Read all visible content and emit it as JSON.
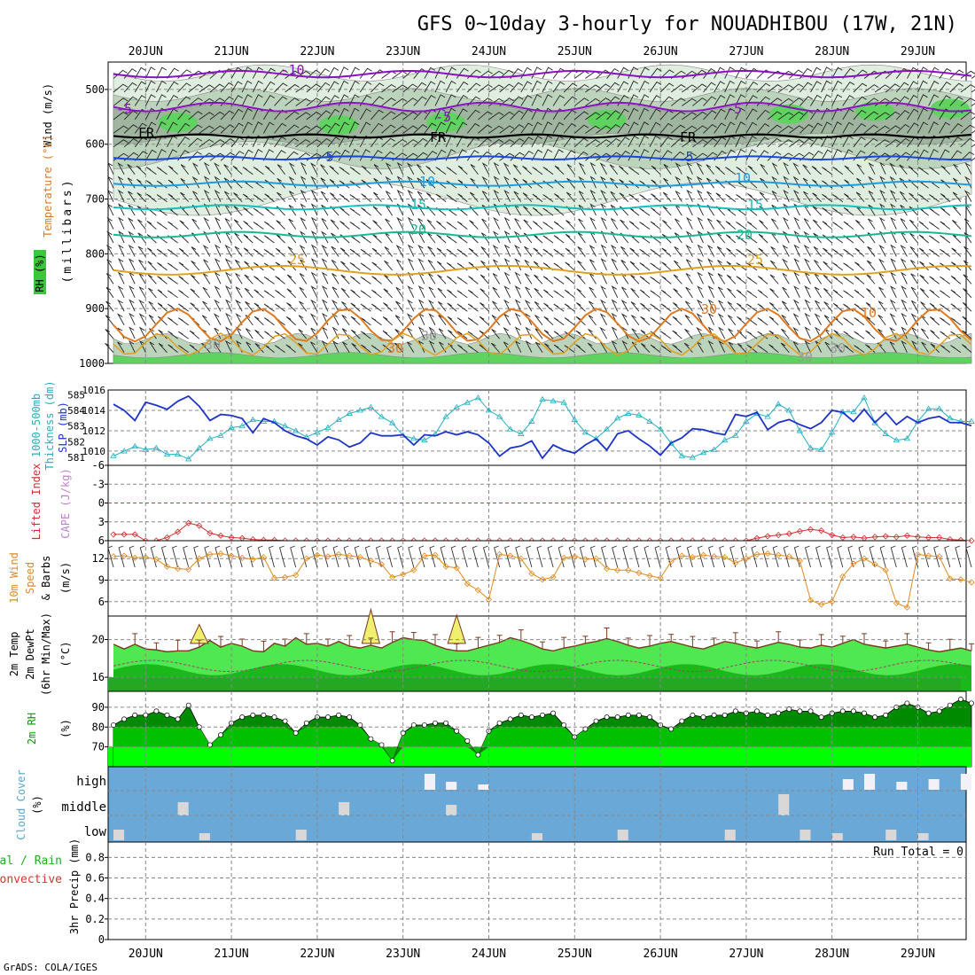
{
  "title": "GFS 0~10day 3-hourly for NOUADHIBOU (17W, 21N)",
  "credit": "GrADS: COLA/IGES",
  "date_labels": [
    "20JUN",
    "21JUN",
    "22JUN",
    "23JUN",
    "24JUN",
    "25JUN",
    "26JUN",
    "27JUN",
    "28JUN",
    "29JUN"
  ],
  "run_total_label": "Run Total = 0",
  "colors": {
    "rh_light": "#dfeede",
    "rh_mid": "#bcd3bc",
    "rh_dark": "#9fb59f",
    "rh_green": "#5fd25f",
    "temp_purple": "#8a10c0",
    "temp_blue": "#1c46d8",
    "temp_lightblue": "#1c9be0",
    "temp_teal": "#16c0b8",
    "temp_green": "#1ab890",
    "temp_gold": "#e0a020",
    "temp_orange": "#e07a20",
    "temp_magenta": "#d0108a",
    "slp_blue": "#1c34c8",
    "thick_cyan": "#22b0c0",
    "lifted_red": "#d03030",
    "wind_orange": "#e08a20",
    "temp2m_green": "#50e850",
    "dew_green": "#1ab81a",
    "rh2m_dark": "#008a00",
    "rh2m_mid": "#00c000",
    "rh2m_bright": "#00ff00",
    "cloud_blue": "#6aa8d8",
    "cloud_white": "#f4f0f8",
    "cloud_grey": "#d8d8d8"
  },
  "panels": {
    "upper": {
      "labels": [
        "Wind (m/s)",
        "Temperature (°C)",
        "RH (%)"
      ],
      "ylabel": "(millibars)",
      "y_ticks": [
        500,
        600,
        700,
        800,
        900,
        1000
      ],
      "contour_labels": [
        "-10",
        "-5",
        "-5",
        "-5",
        "FR",
        "FR",
        "FR",
        "5",
        "5",
        "10",
        "10",
        "15",
        "15",
        "20",
        "20",
        "25",
        "25",
        "30",
        "30",
        "10",
        "30",
        "30",
        "30",
        "30"
      ]
    },
    "slp": {
      "labels": [
        "1000-500mb",
        "Thickness (dm)",
        "SLP (mb)"
      ],
      "y_ticks_left": [
        581,
        582,
        583,
        584,
        585
      ],
      "y_ticks_right": [
        1010,
        1012,
        1014,
        1016
      ]
    },
    "lifted": {
      "labels": [
        "Lifted Index",
        "CAPE (J/kg)"
      ],
      "y_ticks": [
        -6,
        -3,
        0,
        3,
        6
      ]
    },
    "wind10": {
      "labels": [
        "10m Wind",
        "Speed",
        "& Barbs"
      ],
      "unit": "(m/s)",
      "y_ticks": [
        6,
        9,
        12
      ]
    },
    "temp2m": {
      "labels": [
        "2m Temp",
        "2m DewPt",
        "(6hr Min/Max)"
      ],
      "unit": "(°C)",
      "y_ticks": [
        16,
        20
      ]
    },
    "rh2m": {
      "labels": [
        "2m RH"
      ],
      "unit": "(%)",
      "y_ticks": [
        70,
        80,
        90
      ]
    },
    "cloud": {
      "labels": [
        "Cloud Cover"
      ],
      "unit": "(%)",
      "levels": [
        "high",
        "middle",
        "low"
      ]
    },
    "precip": {
      "labels": [
        "Total / Rain",
        "Convective"
      ],
      "ylabel": "3hr Precip (mm)",
      "y_ticks": [
        0,
        0.2,
        0.4,
        0.6,
        0.8
      ]
    }
  },
  "chart_data": {
    "type": "line",
    "x_unit": "3-hourly steps from 19JUN15Z",
    "x": [
      0,
      1,
      2,
      3,
      4,
      5,
      6,
      7,
      8,
      9,
      10,
      11,
      12,
      13,
      14,
      15,
      16,
      17,
      18,
      19,
      20,
      21,
      22,
      23,
      24,
      25,
      26,
      27,
      28,
      29,
      30,
      31,
      32,
      33,
      34,
      35,
      36,
      37,
      38,
      39,
      40,
      41,
      42,
      43,
      44,
      45,
      46,
      47,
      48,
      49,
      50,
      51,
      52,
      53,
      54,
      55,
      56,
      57,
      58,
      59,
      60,
      61,
      62,
      63,
      64,
      65,
      66,
      67,
      68,
      69,
      70,
      71,
      72,
      73,
      74,
      75,
      76,
      77,
      78,
      79,
      80
    ],
    "series": [
      {
        "panel": "slp",
        "values": [
          1014.6,
          1014,
          1013,
          1014.8,
          1014.5,
          1014.1,
          1014.9,
          1015.4,
          1014.4,
          1013,
          1013.6,
          1013.5,
          1013.2,
          1011.8,
          1013.2,
          1012.8,
          1012,
          1011.5,
          1011.2,
          1010.6,
          1011.4,
          1011.1,
          1010.4,
          1010.8,
          1011.8,
          1011.5,
          1011.5,
          1011.6,
          1010.6,
          1011.6,
          1011.5,
          1011.9,
          1011.6,
          1011.9,
          1011.6,
          1010.8,
          1009.5,
          1010.3,
          1010.5,
          1011,
          1009.3,
          1010.6,
          1010.1,
          1009.8,
          1010.6,
          1011.2,
          1010.1,
          1011.7,
          1012,
          1011.2,
          1010.5,
          1009.6,
          1010.8,
          1011.3,
          1012.2,
          1012.1,
          1011.8,
          1011.6,
          1013.6,
          1013.4,
          1013.8,
          1012.1,
          1012.8,
          1013.1,
          1012.6,
          1012.2,
          1012.8,
          1014,
          1013.8,
          1012.9,
          1014.1,
          1012.8,
          1013.8,
          1012.6,
          1013.4,
          1012.8,
          1013.2,
          1013.4,
          1012.8,
          1012.8,
          1012.5
        ]
      },
      {
        "panel": "thickness",
        "values": [
          581.1,
          581.4,
          581.7,
          581.5,
          581.6,
          581.2,
          581.2,
          580.9,
          581.6,
          582.2,
          582.4,
          582.9,
          583,
          583.4,
          583.3,
          583.3,
          583,
          582.7,
          582.3,
          582.6,
          582.9,
          583.4,
          583.8,
          584,
          584.2,
          583.6,
          583.2,
          582.4,
          582.2,
          582.1,
          582.5,
          583.6,
          584.2,
          584.5,
          584.8,
          584,
          583.6,
          582.8,
          582.5,
          583.3,
          584.7,
          584.6,
          584.5,
          583.4,
          582.6,
          582.2,
          582.8,
          583.5,
          583.8,
          583.7,
          583.3,
          582.8,
          581.9,
          581.1,
          581,
          581.3,
          581.5,
          582.1,
          582.4,
          583.3,
          583.8,
          583.6,
          584.4,
          584,
          582.7,
          581.6,
          581.5,
          582.6,
          583.9,
          583.9,
          584.8,
          583.2,
          582.5,
          582.1,
          582.2,
          583.3,
          584.1,
          584.1,
          583.5,
          583.3,
          583.3
        ]
      },
      {
        "panel": "lifted_index",
        "values": [
          5,
          5,
          5,
          6,
          6,
          5.5,
          4.6,
          3.2,
          3.6,
          4.8,
          5.2,
          5.5,
          5.6,
          5.8,
          5.9,
          5.9,
          6,
          6,
          6,
          6,
          6,
          6,
          6,
          6,
          6,
          6,
          6,
          6,
          6,
          6,
          6,
          6,
          6,
          6,
          6,
          6,
          6,
          6,
          6,
          6,
          6,
          6,
          6,
          6,
          6,
          6,
          6,
          6,
          6,
          6,
          6,
          6,
          6,
          6,
          6,
          6,
          6,
          6,
          6,
          6,
          5.6,
          5.3,
          5.1,
          4.9,
          4.5,
          4.2,
          4.4,
          5.1,
          5.5,
          5.4,
          5.6,
          5.4,
          5.3,
          5.4,
          5.2,
          5.4,
          5.5,
          5.5,
          5.8,
          5.9,
          6
        ]
      },
      {
        "panel": "wind10_speed",
        "values": [
          12.3,
          12.4,
          12.1,
          12.2,
          11.9,
          10.9,
          10.6,
          10.5,
          12,
          12.6,
          12.7,
          12.4,
          12.1,
          11.9,
          12.2,
          9.3,
          9.4,
          9.7,
          12,
          12.5,
          12.3,
          12.6,
          12.4,
          12.2,
          11.7,
          11.2,
          9.4,
          9.8,
          10.4,
          12.4,
          12.5,
          10.9,
          10.7,
          8.5,
          7.6,
          6.3,
          12.6,
          12.4,
          12,
          9.9,
          9.1,
          9.4,
          12.1,
          12.3,
          11.9,
          12,
          10.6,
          10.4,
          10.4,
          10,
          9.6,
          9.3,
          11.6,
          12.4,
          12.2,
          12.5,
          12.3,
          12.2,
          11.4,
          12,
          12.6,
          12.7,
          12.5,
          12.3,
          11.7,
          6.2,
          5.6,
          6,
          9.5,
          11.3,
          12,
          11.2,
          10.4,
          5.8,
          5.2,
          12.6,
          12.4,
          12.3,
          9.2,
          9.1,
          8.7
        ]
      },
      {
        "panel": "temp2m",
        "values": [
          19.5,
          19,
          19.5,
          19,
          18.9,
          18.7,
          18.8,
          18.8,
          19.2,
          19.9,
          19.2,
          19.6,
          19.3,
          18.8,
          18.7,
          19.6,
          19.3,
          20.2,
          19.5,
          19.6,
          19.3,
          19.8,
          19.3,
          19.1,
          19.4,
          19.1,
          19.7,
          20.2,
          20,
          19.9,
          19.4,
          19,
          18.8,
          18.8,
          19.1,
          19.4,
          19.7,
          20.2,
          19.9,
          19.5,
          19,
          18.8,
          19.1,
          19.3,
          19.6,
          19.8,
          20.1,
          19.8,
          19.4,
          19.1,
          19.3,
          19.6,
          19.8,
          19.5,
          19.2,
          19,
          19.4,
          19.8,
          19.6,
          19.3,
          19.1,
          19.4,
          19.7,
          19.5,
          19.2,
          19.1,
          19.4,
          19.2,
          19.6,
          20,
          19.5,
          19.3,
          19.1,
          19.3,
          19.5,
          19.2,
          18.9,
          18.7,
          18.9,
          19.1,
          18.8
        ]
      },
      {
        "panel": "rh2m",
        "values": [
          81,
          84,
          86,
          86,
          88,
          86,
          84,
          91,
          80,
          71,
          76,
          82,
          85,
          86,
          86,
          85,
          83,
          77,
          82,
          85,
          85,
          86,
          85,
          81,
          74,
          71,
          63,
          77,
          81,
          81,
          82,
          82,
          78,
          73,
          66,
          78,
          82,
          84,
          86,
          85,
          86,
          87,
          81,
          75,
          79,
          83,
          85,
          85,
          86,
          86,
          85,
          81,
          79,
          83,
          86,
          85,
          86,
          86,
          88,
          87,
          88,
          86,
          87,
          89,
          88,
          88,
          85,
          87,
          88,
          88,
          87,
          85,
          86,
          90,
          92,
          90,
          87,
          88,
          91,
          94,
          92
        ]
      },
      {
        "panel": "precip",
        "values": [
          0,
          0,
          0,
          0,
          0,
          0,
          0,
          0,
          0,
          0,
          0,
          0,
          0,
          0,
          0,
          0,
          0,
          0,
          0,
          0,
          0,
          0,
          0,
          0,
          0,
          0,
          0,
          0,
          0,
          0,
          0,
          0,
          0,
          0,
          0,
          0,
          0,
          0,
          0,
          0,
          0,
          0,
          0,
          0,
          0,
          0,
          0,
          0,
          0,
          0,
          0,
          0,
          0,
          0,
          0,
          0,
          0,
          0,
          0,
          0,
          0,
          0,
          0,
          0,
          0,
          0,
          0,
          0,
          0,
          0,
          0,
          0,
          0,
          0,
          0,
          0,
          0,
          0,
          0,
          0,
          0
        ]
      }
    ],
    "ylim_slp": [
      1008.6,
      1016
    ],
    "ylim_thickness": [
      580.5,
      585.3
    ],
    "ylim_lifted_index": [
      -6,
      6
    ],
    "ylim_wind10": [
      4,
      14.5
    ],
    "ylim_temp2m": [
      14.5,
      22.5
    ],
    "ylim_rh2m": [
      60,
      98
    ],
    "ylim_precip": [
      0,
      0.95
    ],
    "grid": true
  }
}
